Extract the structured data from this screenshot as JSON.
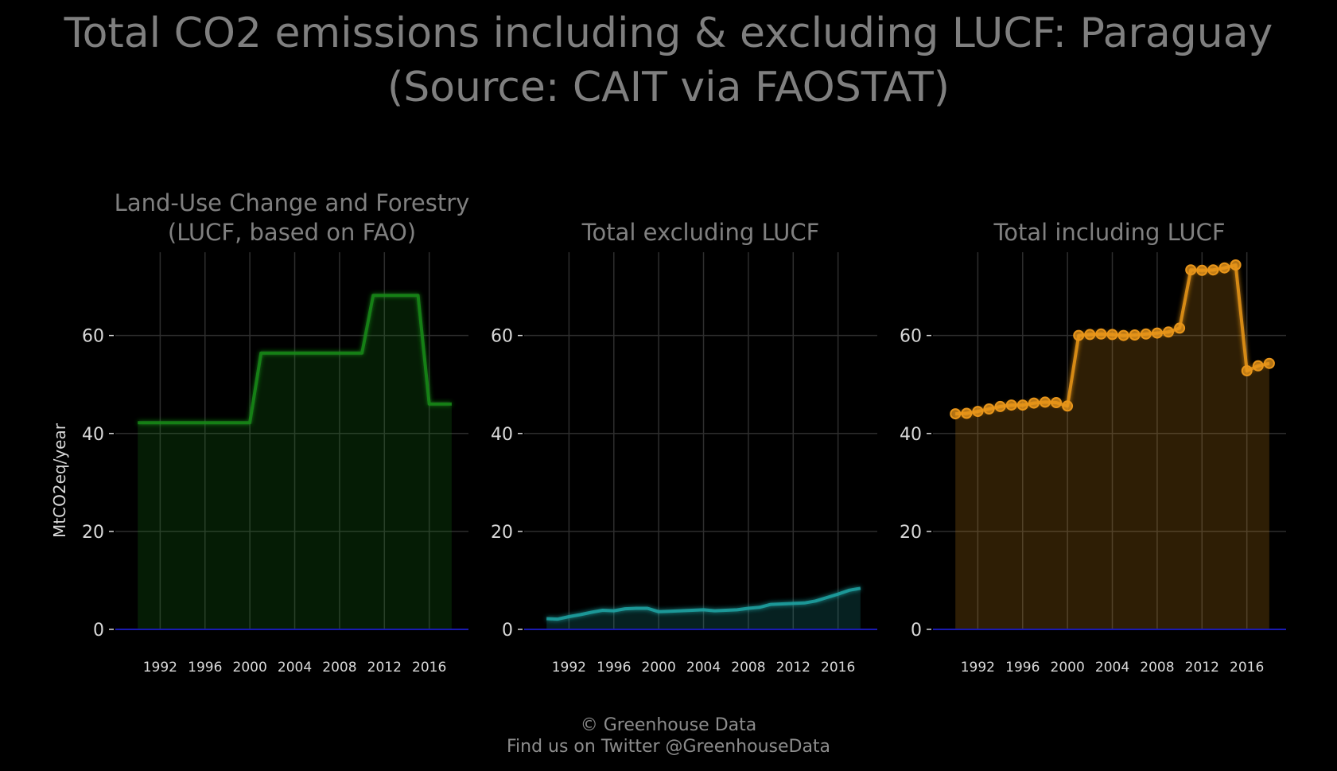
{
  "title": {
    "line1": "Total CO2 emissions including & excluding LUCF: Paraguay",
    "line2": "(Source: CAIT via FAOSTAT)"
  },
  "footer": {
    "line1": "© Greenhouse Data",
    "line2": "Find us on Twitter @GreenhouseData"
  },
  "chart_data": [
    {
      "type": "area",
      "title": [
        "Land-Use Change and Forestry",
        "(LUCF, based on FAO)"
      ],
      "xlabel": "",
      "ylabel": "MtCO2eq/year",
      "xlim": [
        1988,
        2019.5
      ],
      "ylim": [
        0,
        77
      ],
      "xticks": [
        1992,
        1996,
        2000,
        2004,
        2008,
        2012,
        2016
      ],
      "yticks": [
        0,
        20,
        40,
        60
      ],
      "grid": true,
      "color": "#1a8a1a",
      "markers": false,
      "x": [
        1990,
        1991,
        1992,
        1993,
        1994,
        1995,
        1996,
        1997,
        1998,
        1999,
        2000,
        2001,
        2002,
        2003,
        2004,
        2005,
        2006,
        2007,
        2008,
        2009,
        2010,
        2011,
        2012,
        2013,
        2014,
        2015,
        2016,
        2017,
        2018
      ],
      "values": [
        42.2,
        42.2,
        42.2,
        42.2,
        42.2,
        42.2,
        42.2,
        42.2,
        42.2,
        42.2,
        42.2,
        56.4,
        56.4,
        56.4,
        56.4,
        56.4,
        56.4,
        56.4,
        56.4,
        56.4,
        56.4,
        68.2,
        68.2,
        68.2,
        68.2,
        68.2,
        46.0,
        46.0,
        46.0
      ]
    },
    {
      "type": "area",
      "title": [
        "Total excluding LUCF"
      ],
      "xlabel": "",
      "ylabel": "",
      "xlim": [
        1988,
        2019.5
      ],
      "ylim": [
        0,
        77
      ],
      "xticks": [
        1992,
        1996,
        2000,
        2004,
        2008,
        2012,
        2016
      ],
      "yticks": [
        0,
        20,
        40,
        60
      ],
      "grid": true,
      "color": "#1fa3a3",
      "markers": false,
      "x": [
        1990,
        1991,
        1992,
        1993,
        1994,
        1995,
        1996,
        1997,
        1998,
        1999,
        2000,
        2001,
        2002,
        2003,
        2004,
        2005,
        2006,
        2007,
        2008,
        2009,
        2010,
        2011,
        2012,
        2013,
        2014,
        2015,
        2016,
        2017,
        2018
      ],
      "values": [
        2.2,
        2.1,
        2.6,
        3.0,
        3.5,
        3.9,
        3.8,
        4.2,
        4.3,
        4.3,
        3.6,
        3.7,
        3.8,
        3.9,
        4.0,
        3.8,
        3.9,
        4.0,
        4.3,
        4.5,
        5.1,
        5.2,
        5.3,
        5.4,
        5.8,
        6.5,
        7.2,
        8.0,
        8.4
      ]
    },
    {
      "type": "area",
      "title": [
        "Total including LUCF"
      ],
      "xlabel": "",
      "ylabel": "",
      "xlim": [
        1988,
        2019.5
      ],
      "ylim": [
        0,
        77
      ],
      "xticks": [
        1992,
        1996,
        2000,
        2004,
        2008,
        2012,
        2016
      ],
      "yticks": [
        0,
        20,
        40,
        60
      ],
      "grid": true,
      "color": "#e8951a",
      "markers": true,
      "x": [
        1990,
        1991,
        1992,
        1993,
        1994,
        1995,
        1996,
        1997,
        1998,
        1999,
        2000,
        2001,
        2002,
        2003,
        2004,
        2005,
        2006,
        2007,
        2008,
        2009,
        2010,
        2011,
        2012,
        2013,
        2014,
        2015,
        2016,
        2017,
        2018
      ],
      "values": [
        44.0,
        44.1,
        44.5,
        45.0,
        45.5,
        45.8,
        45.8,
        46.2,
        46.4,
        46.3,
        45.6,
        60.0,
        60.2,
        60.3,
        60.2,
        60.0,
        60.1,
        60.3,
        60.5,
        60.7,
        61.5,
        73.4,
        73.3,
        73.4,
        73.8,
        74.4,
        52.8,
        53.8,
        54.3
      ]
    }
  ],
  "colors": {
    "background": "#000000",
    "grid": "#2e2e2e",
    "axis_text": "#d9d9d9",
    "title_text": "#808080",
    "zero_line": "#1a1ab0"
  }
}
